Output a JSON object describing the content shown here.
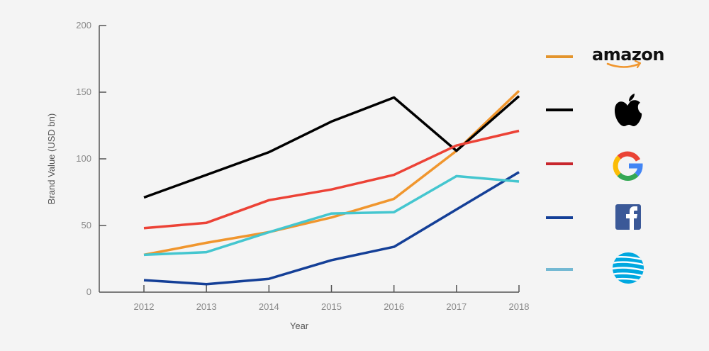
{
  "chart_data": {
    "type": "line",
    "title": "",
    "xlabel": "Year",
    "ylabel": "Brand Value (USD bn)",
    "x": [
      "2012",
      "2013",
      "2014",
      "2015",
      "2016",
      "2017",
      "2018"
    ],
    "y_ticks": [
      "0",
      "50",
      "100",
      "150",
      "200"
    ],
    "ylim": [
      0,
      200
    ],
    "grid": false,
    "legend_position": "right",
    "series": [
      {
        "name": "amazon",
        "color": "#f0962e",
        "icon": "amazon-logo-icon",
        "values": [
          28,
          37,
          45,
          56,
          70,
          106,
          151
        ]
      },
      {
        "name": "Apple",
        "color": "#000000",
        "icon": "apple-logo-icon",
        "values": [
          71,
          88,
          105,
          128,
          146,
          106,
          147
        ]
      },
      {
        "name": "Google",
        "color": "#ec4236",
        "icon": "google-logo-icon",
        "values": [
          48,
          52,
          69,
          77,
          88,
          110,
          121
        ]
      },
      {
        "name": "Facebook",
        "color": "#143f97",
        "icon": "facebook-logo-icon",
        "values": [
          9,
          6,
          10,
          24,
          34,
          62,
          90
        ]
      },
      {
        "name": "AT&T",
        "color": "#44c6cf",
        "icon": "att-logo-icon",
        "values": [
          28,
          30,
          45,
          59,
          60,
          87,
          83
        ]
      }
    ],
    "legend_colors": [
      "#e3942c",
      "#000000",
      "#c8262d",
      "#143f97",
      "#74b9d3"
    ]
  }
}
